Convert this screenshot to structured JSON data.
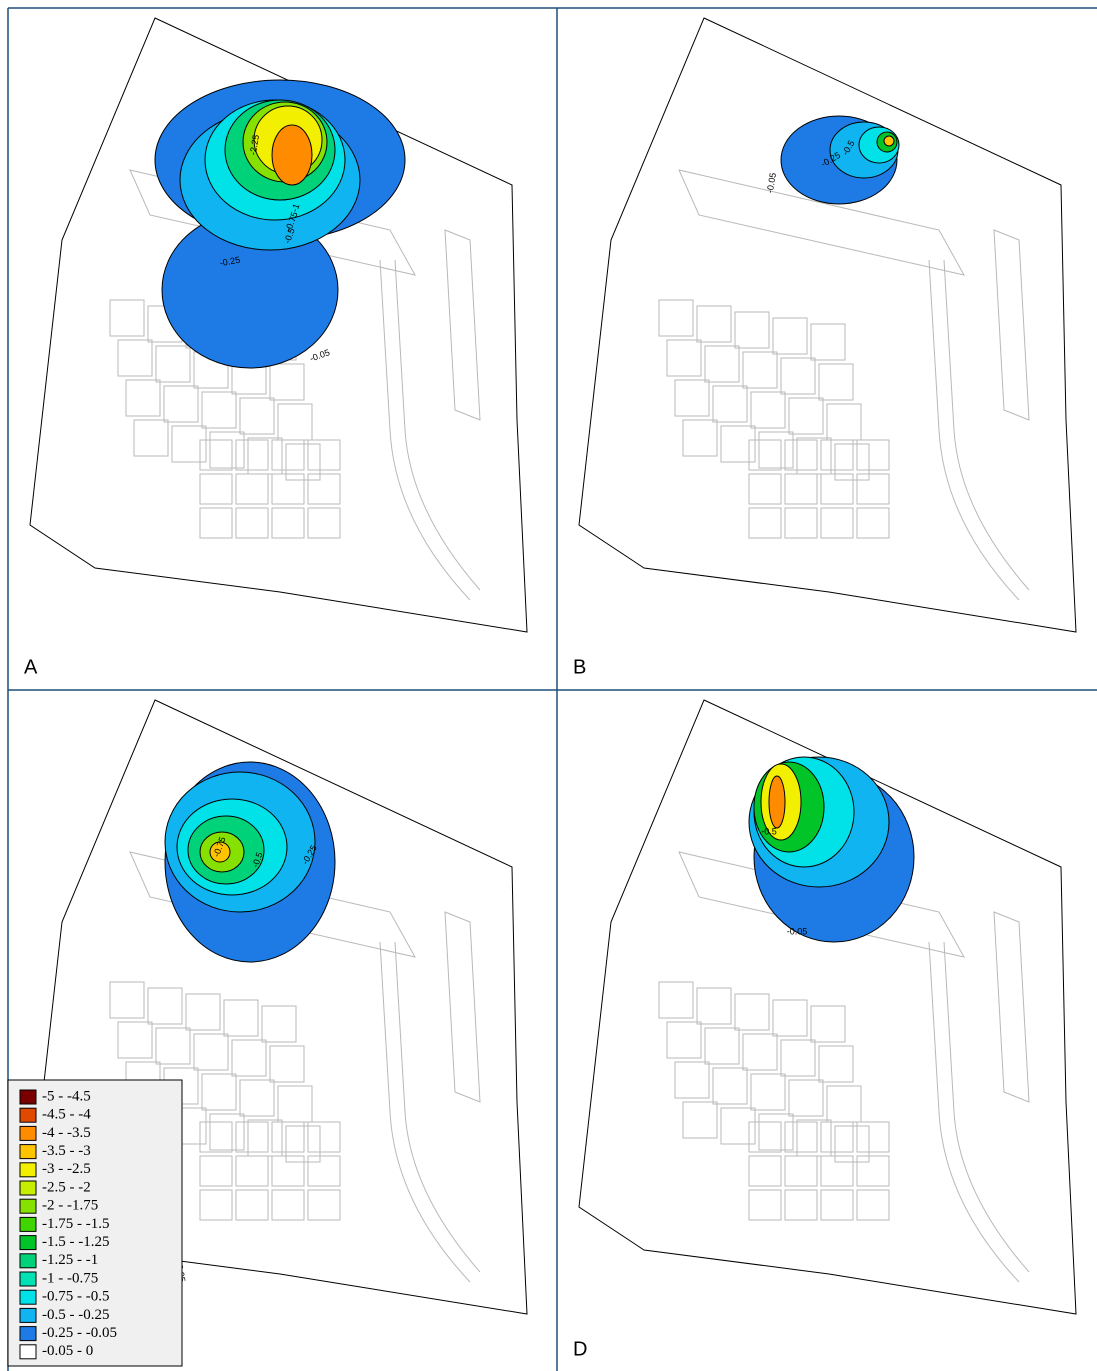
{
  "panels": [
    {
      "label": "A",
      "contour_labels": [
        "-0.05",
        "-0.25",
        "-0.5",
        "-0.75",
        "-1",
        "-2.25"
      ]
    },
    {
      "label": "B",
      "contour_labels": [
        "-0.05",
        "-0.25",
        "-0.5"
      ]
    },
    {
      "contour_labels": [
        "-0.05",
        "-0.25",
        "-0.5",
        "-0.75"
      ]
    },
    {
      "label": "D",
      "contour_labels": [
        "-0.05",
        "-0.5"
      ]
    }
  ],
  "legend": {
    "items": [
      {
        "label": "-5 - -4.5",
        "color": "#7a0000"
      },
      {
        "label": "-4.5 - -4",
        "color": "#e04a00"
      },
      {
        "label": "-4 - -3.5",
        "color": "#ff8c00"
      },
      {
        "label": "-3.5 - -3",
        "color": "#ffc400"
      },
      {
        "label": "-3 - -2.5",
        "color": "#f2f000"
      },
      {
        "label": "-2.5 - -2",
        "color": "#c6ee00"
      },
      {
        "label": "-2 - -1.75",
        "color": "#86e000"
      },
      {
        "label": "-1.75 - -1.5",
        "color": "#40d400"
      },
      {
        "label": "-1.5 - -1.25",
        "color": "#00c428"
      },
      {
        "label": "-1.25 - -1",
        "color": "#00d27a"
      },
      {
        "label": "-1 - -0.75",
        "color": "#00e2b4"
      },
      {
        "label": "-0.75 - -0.5",
        "color": "#00e2e8"
      },
      {
        "label": "-0.5 - -0.25",
        "color": "#10b4f0"
      },
      {
        "label": "-0.25 - -0.05",
        "color": "#1e7be6"
      },
      {
        "label": "-0.05 - 0",
        "color": "#ffffff"
      }
    ]
  }
}
